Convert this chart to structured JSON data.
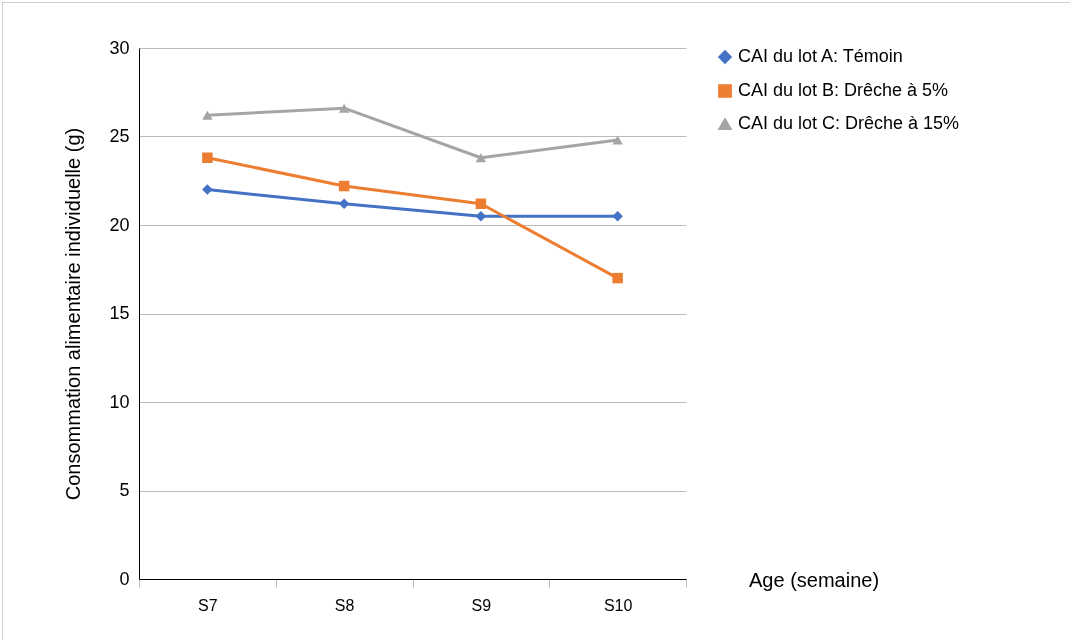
{
  "chart_data": {
    "type": "line",
    "xlabel": "Age (semaine)",
    "ylabel": "Consommation alimentaire individuelle (g)",
    "categories": [
      "S7",
      "S8",
      "S9",
      "S10"
    ],
    "series": [
      {
        "name": "CAI du lot A: Témoin",
        "color": "#4472c4",
        "marker": "diamond",
        "values": [
          22.0,
          21.2,
          20.5,
          20.5
        ]
      },
      {
        "name": "CAI du lot B: Drêche à 5%",
        "color": "#ed7d31",
        "marker": "square",
        "values": [
          23.8,
          22.2,
          21.2,
          17.0
        ]
      },
      {
        "name": "CAI du lot C: Drêche à 15%",
        "color": "#a5a5a5",
        "marker": "triangle",
        "values": [
          26.2,
          26.6,
          23.8,
          24.8
        ]
      }
    ],
    "ylim": [
      0,
      30
    ],
    "yticks": [
      0,
      5,
      10,
      15,
      20,
      25,
      30
    ],
    "grid": "y",
    "legend": "right",
    "line_style": "solid"
  }
}
